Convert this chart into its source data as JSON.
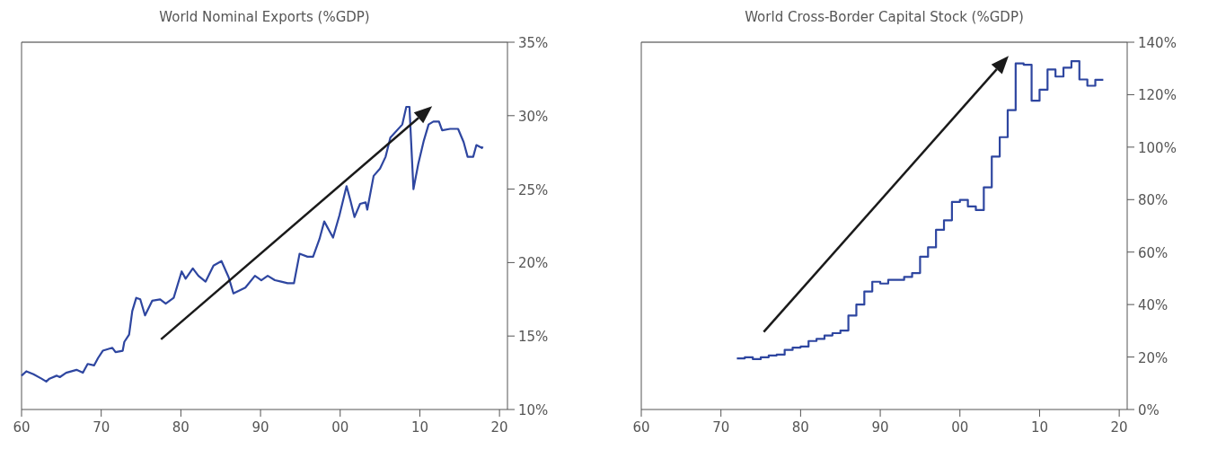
{
  "chart_data": [
    {
      "type": "line",
      "title": "World Nominal Exports (%GDP)",
      "color": "#2e46a0",
      "xlim": [
        1960,
        2021
      ],
      "xticks": [
        {
          "value": 1960,
          "label": "60"
        },
        {
          "value": 1970,
          "label": "70"
        },
        {
          "value": 1980,
          "label": "80"
        },
        {
          "value": 1990,
          "label": "90"
        },
        {
          "value": 2000,
          "label": "00"
        },
        {
          "value": 2010,
          "label": "10"
        },
        {
          "value": 2020,
          "label": "20"
        }
      ],
      "ylim": [
        10,
        35
      ],
      "yticks": [
        {
          "value": 10,
          "label": "10%"
        },
        {
          "value": 15,
          "label": "15%"
        },
        {
          "value": 20,
          "label": "20%"
        },
        {
          "value": 25,
          "label": "25%"
        },
        {
          "value": 30,
          "label": "30%"
        },
        {
          "value": 35,
          "label": "35%"
        }
      ],
      "x": [
        1960,
        1960.6,
        1961.5,
        1962.5,
        1963.1,
        1963.5,
        1964.4,
        1964.8,
        1965.6,
        1966.9,
        1967.7,
        1968.3,
        1969.1,
        1969.6,
        1970.2,
        1971.4,
        1971.8,
        1972.7,
        1972.9,
        1973.5,
        1973.9,
        1974.4,
        1974.9,
        1975.5,
        1976.4,
        1977.4,
        1978.1,
        1979.1,
        1980.1,
        1980.6,
        1981.5,
        1982.2,
        1983.1,
        1984.1,
        1985.1,
        1986.0,
        1986.6,
        1988.1,
        1989.3,
        1990.1,
        1990.9,
        1991.8,
        1992.6,
        1993.4,
        1994.2,
        1994.9,
        1995.9,
        1996.6,
        1997.4,
        1998.0,
        1998.4,
        1999.1,
        1999.9,
        2000.8,
        2001.3,
        2001.8,
        2002.5,
        2003.2,
        2003.4,
        2004.2,
        2005.0,
        2005.7,
        2006.3,
        2007.8,
        2008.3,
        2008.7,
        2008.9,
        2009.2,
        2009.8,
        2010.5,
        2011.1,
        2011.7,
        2012.4,
        2012.8,
        2013.8,
        2014.8,
        2015.5,
        2016.0,
        2016.7,
        2017.1,
        2017.8,
        2017.9
      ],
      "values": [
        12.3,
        12.6,
        12.4,
        12.1,
        11.9,
        12.1,
        12.3,
        12.2,
        12.5,
        12.7,
        12.5,
        13.1,
        13.0,
        13.5,
        14.0,
        14.2,
        13.9,
        14.0,
        14.6,
        15.1,
        16.7,
        17.6,
        17.5,
        16.4,
        17.4,
        17.5,
        17.2,
        17.6,
        19.4,
        18.9,
        19.6,
        19.1,
        18.7,
        19.8,
        20.1,
        19.0,
        17.9,
        18.3,
        19.1,
        18.8,
        19.1,
        18.8,
        18.7,
        18.6,
        18.6,
        20.6,
        20.4,
        20.4,
        21.6,
        22.8,
        22.4,
        21.7,
        23.2,
        25.2,
        24.2,
        23.1,
        24.0,
        24.1,
        23.6,
        25.9,
        26.4,
        27.2,
        28.5,
        29.4,
        30.6,
        30.6,
        28.3,
        25.0,
        26.7,
        28.3,
        29.4,
        29.6,
        29.6,
        29.0,
        29.1,
        29.1,
        28.2,
        27.2,
        27.2,
        28.0,
        27.8,
        27.9
      ]
    },
    {
      "type": "step",
      "title": "World Cross-Border Capital Stock (%GDP)",
      "color": "#2e46a0",
      "xlim": [
        1960,
        2021
      ],
      "xticks": [
        {
          "value": 1960,
          "label": "60"
        },
        {
          "value": 1970,
          "label": "70"
        },
        {
          "value": 1980,
          "label": "80"
        },
        {
          "value": 1990,
          "label": "90"
        },
        {
          "value": 2000,
          "label": "00"
        },
        {
          "value": 2010,
          "label": "10"
        },
        {
          "value": 2020,
          "label": "20"
        }
      ],
      "ylim": [
        0,
        140
      ],
      "yticks": [
        {
          "value": 0,
          "label": "0%"
        },
        {
          "value": 20,
          "label": "20%"
        },
        {
          "value": 40,
          "label": "40%"
        },
        {
          "value": 60,
          "label": "60%"
        },
        {
          "value": 80,
          "label": "80%"
        },
        {
          "value": 100,
          "label": "100%"
        },
        {
          "value": 120,
          "label": "120%"
        },
        {
          "value": 140,
          "label": "140%"
        }
      ],
      "x": [
        1972,
        1973,
        1974,
        1975,
        1976,
        1977,
        1978,
        1979,
        1980,
        1981,
        1982,
        1983,
        1984,
        1985,
        1986,
        1987,
        1988,
        1989,
        1990,
        1991,
        1992,
        1993,
        1994,
        1995,
        1996,
        1997,
        1998,
        1999,
        2000,
        2001,
        2002,
        2003,
        2004,
        2005,
        2006,
        2007,
        2008,
        2009,
        2010,
        2011,
        2012,
        2013,
        2014,
        2015,
        2016,
        2017,
        2018
      ],
      "values": [
        19.5,
        19.9,
        19.2,
        19.9,
        20.6,
        20.9,
        22.7,
        23.6,
        24.0,
        26.1,
        26.9,
        28.2,
        29.1,
        30.1,
        35.8,
        40.0,
        45.0,
        48.7,
        48.0,
        49.4,
        49.4,
        50.5,
        52.0,
        58.2,
        61.8,
        68.5,
        72.1,
        79.1,
        79.9,
        77.4,
        76.0,
        84.7,
        96.4,
        103.8,
        114.1,
        131.9,
        131.4,
        117.7,
        121.9,
        129.6,
        126.9,
        130.3,
        132.8,
        125.8,
        123.4,
        125.7,
        125.7
      ]
    }
  ]
}
